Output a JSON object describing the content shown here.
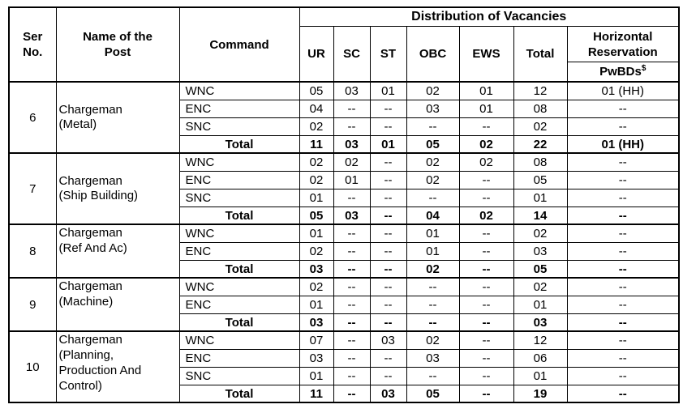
{
  "table": {
    "header": {
      "ser": "Ser\nNo.",
      "name": "Name of the\nPost",
      "command": "Command",
      "distribution": "Distribution of Vacancies",
      "columns": [
        "UR",
        "SC",
        "ST",
        "OBC",
        "EWS",
        "Total"
      ],
      "horizontal_reservation": "Horizontal\nReservation",
      "pwbds": "PwBDs",
      "pwbds_sup": "$"
    },
    "groups": [
      {
        "ser": "6",
        "post": "Chargeman\n(Metal)",
        "rows": [
          {
            "command": "WNC",
            "bold": false,
            "values": [
              "05",
              "03",
              "01",
              "02",
              "01",
              "12",
              "01 (HH)"
            ]
          },
          {
            "command": "ENC",
            "bold": false,
            "values": [
              "04",
              "--",
              "--",
              "03",
              "01",
              "08",
              "--"
            ]
          },
          {
            "command": "SNC",
            "bold": false,
            "values": [
              "02",
              "--",
              "--",
              "--",
              "--",
              "02",
              "--"
            ]
          },
          {
            "command": "Total",
            "bold": true,
            "values": [
              "11",
              "03",
              "01",
              "05",
              "02",
              "22",
              "01 (HH)"
            ]
          }
        ]
      },
      {
        "ser": "7",
        "post": "Chargeman\n(Ship Building)",
        "rows": [
          {
            "command": "WNC",
            "bold": false,
            "values": [
              "02",
              "02",
              "--",
              "02",
              "02",
              "08",
              "--"
            ]
          },
          {
            "command": "ENC",
            "bold": false,
            "values": [
              "02",
              "01",
              "--",
              "02",
              "--",
              "05",
              "--"
            ]
          },
          {
            "command": "SNC",
            "bold": false,
            "values": [
              "01",
              "--",
              "--",
              "--",
              "--",
              "01",
              "--"
            ]
          },
          {
            "command": "Total",
            "bold": true,
            "values": [
              "05",
              "03",
              "--",
              "04",
              "02",
              "14",
              "--"
            ]
          }
        ]
      },
      {
        "ser": "8",
        "post": "Chargeman\n(Ref And Ac)",
        "rows": [
          {
            "command": "WNC",
            "bold": false,
            "values": [
              "01",
              "--",
              "--",
              "01",
              "--",
              "02",
              "--"
            ]
          },
          {
            "command": "ENC",
            "bold": false,
            "values": [
              "02",
              "--",
              "--",
              "01",
              "--",
              "03",
              "--"
            ]
          },
          {
            "command": "Total",
            "bold": true,
            "values": [
              "03",
              "--",
              "--",
              "02",
              "--",
              "05",
              "--"
            ]
          }
        ]
      },
      {
        "ser": "9",
        "post": "Chargeman\n(Machine)",
        "rows": [
          {
            "command": "WNC",
            "bold": false,
            "values": [
              "02",
              "--",
              "--",
              "--",
              "--",
              "02",
              "--"
            ]
          },
          {
            "command": "ENC",
            "bold": false,
            "values": [
              "01",
              "--",
              "--",
              "--",
              "--",
              "01",
              "--"
            ]
          },
          {
            "command": "Total",
            "bold": true,
            "values": [
              "03",
              "--",
              "--",
              "--",
              "--",
              "03",
              "--"
            ]
          }
        ]
      },
      {
        "ser": "10",
        "post": "Chargeman\n(Planning,\nProduction And\nControl)",
        "rows": [
          {
            "command": "WNC",
            "bold": false,
            "values": [
              "07",
              "--",
              "03",
              "02",
              "--",
              "12",
              "--"
            ]
          },
          {
            "command": "ENC",
            "bold": false,
            "values": [
              "03",
              "--",
              "--",
              "03",
              "--",
              "06",
              "--"
            ]
          },
          {
            "command": "SNC",
            "bold": false,
            "values": [
              "01",
              "--",
              "--",
              "--",
              "--",
              "01",
              "--"
            ]
          },
          {
            "command": "Total",
            "bold": true,
            "values": [
              "11",
              "--",
              "03",
              "05",
              "--",
              "19",
              "--"
            ]
          }
        ]
      }
    ]
  }
}
